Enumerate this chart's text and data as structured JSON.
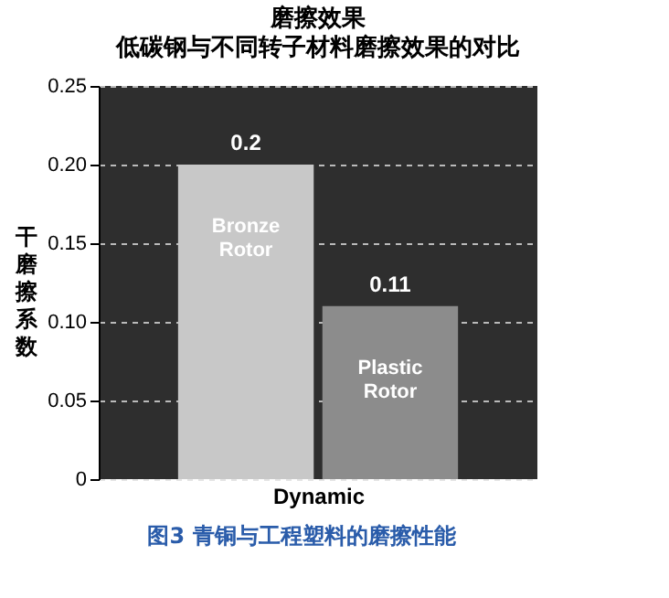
{
  "chart_data": {
    "type": "bar",
    "title": "磨擦效果",
    "subtitle": "低碳钢与不同转子材料磨擦效果的对比",
    "xlabel": "Dynamic",
    "ylabel": "干磨擦系数",
    "categories": [
      "Bronze Rotor",
      "Plastic Rotor"
    ],
    "values": [
      0.2,
      0.11
    ],
    "colors": [
      "#c8c8c8",
      "#8c8c8c"
    ],
    "ylim": [
      0,
      0.25
    ],
    "yticks": [
      0,
      {
        "value": 0.05,
        "label": "0.05"
      },
      {
        "value": 0.1,
        "label": "0.10"
      },
      {
        "value": 0.15,
        "label": "0.15"
      },
      {
        "value": 0.2,
        "label": "0.20"
      },
      {
        "value": 0.25,
        "label": "0.25"
      }
    ],
    "grid": "y",
    "data_labels": true,
    "tick_labels": "y",
    "annotations": [
      "图3  青铜与工程塑料的磨擦性能"
    ]
  }
}
